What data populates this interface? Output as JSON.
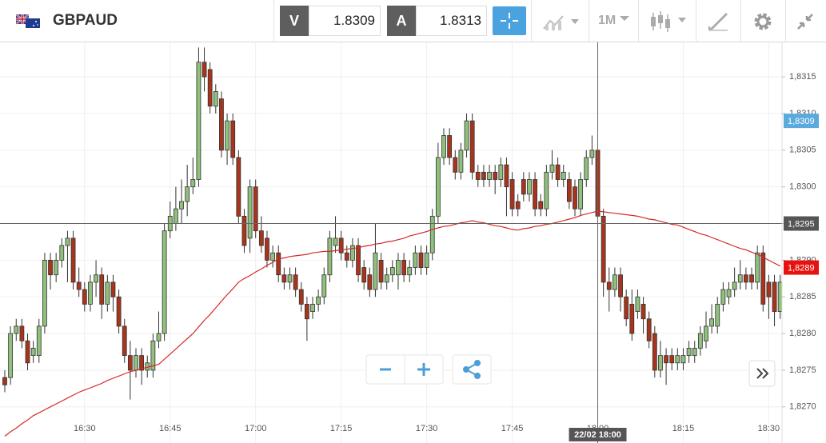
{
  "header": {
    "symbol": "GBPAUD",
    "bid_label": "V",
    "bid": 1.8309,
    "ask_label": "A",
    "ask": 1.8313,
    "timeframe": "1M"
  },
  "chart_data": {
    "type": "candlestick",
    "categories": [
      null,
      null,
      null,
      null,
      null,
      null,
      null,
      null,
      null,
      null,
      null,
      null,
      null,
      null,
      "16:30",
      null,
      null,
      null,
      null,
      null,
      null,
      null,
      null,
      null,
      null,
      null,
      null,
      null,
      null,
      "16:45",
      null,
      null,
      null,
      null,
      null,
      null,
      null,
      null,
      null,
      null,
      null,
      null,
      null,
      null,
      "17:00",
      null,
      null,
      null,
      null,
      null,
      null,
      null,
      null,
      null,
      null,
      null,
      null,
      null,
      null,
      "17:15",
      null,
      null,
      null,
      null,
      null,
      null,
      null,
      null,
      null,
      null,
      null,
      null,
      null,
      null,
      "17:30",
      null,
      null,
      null,
      null,
      null,
      null,
      null,
      null,
      null,
      null,
      null,
      null,
      null,
      null,
      "17:45",
      null,
      null,
      null,
      null,
      null,
      null,
      null,
      null,
      null,
      null,
      null,
      null,
      null,
      null,
      "18:00",
      null,
      null,
      null,
      null,
      null,
      null,
      null,
      null,
      null,
      null,
      null,
      null,
      null,
      null,
      "18:15",
      null,
      null,
      null,
      null,
      null,
      null,
      null,
      null,
      null,
      null,
      null,
      null,
      null,
      null,
      "18:30",
      null,
      null
    ],
    "candles": [
      [
        1.8274,
        1.8275,
        1.8272,
        1.8273
      ],
      [
        1.8274,
        1.8281,
        1.8273,
        1.828
      ],
      [
        1.828,
        1.8282,
        1.8279,
        1.8281
      ],
      [
        1.8281,
        1.8282,
        1.8278,
        1.8279
      ],
      [
        1.8279,
        1.828,
        1.8275,
        1.8276
      ],
      [
        1.8277,
        1.8279,
        1.8276,
        1.8278
      ],
      [
        1.8277,
        1.8282,
        1.8276,
        1.8281
      ],
      [
        1.8281,
        1.8291,
        1.828,
        1.829
      ],
      [
        1.829,
        1.8291,
        1.8286,
        1.8288
      ],
      [
        1.8288,
        1.8291,
        1.8287,
        1.829
      ],
      [
        1.829,
        1.8293,
        1.8289,
        1.8292
      ],
      [
        1.8292,
        1.8294,
        1.8287,
        1.8293
      ],
      [
        1.8293,
        1.8294,
        1.8286,
        1.8287
      ],
      [
        1.8287,
        1.8289,
        1.8285,
        1.8286
      ],
      [
        1.8286,
        1.8287,
        1.8283,
        1.8284
      ],
      [
        1.8284,
        1.8288,
        1.8283,
        1.8287
      ],
      [
        1.8287,
        1.829,
        1.8285,
        1.8288
      ],
      [
        1.8288,
        1.8289,
        1.8282,
        1.8284
      ],
      [
        1.8284,
        1.8288,
        1.8283,
        1.8287
      ],
      [
        1.8287,
        1.8288,
        1.8283,
        1.8285
      ],
      [
        1.8285,
        1.8286,
        1.828,
        1.8281
      ],
      [
        1.8281,
        1.8282,
        1.8276,
        1.8277
      ],
      [
        1.8277,
        1.8279,
        1.8271,
        1.8275
      ],
      [
        1.8275,
        1.8278,
        1.8274,
        1.8277
      ],
      [
        1.8277,
        1.8278,
        1.8273,
        1.8275
      ],
      [
        1.8275,
        1.8277,
        1.8274,
        1.8276
      ],
      [
        1.8275,
        1.828,
        1.8274,
        1.8279
      ],
      [
        1.8279,
        1.8283,
        1.8278,
        1.828
      ],
      [
        1.828,
        1.8295,
        1.8279,
        1.8294
      ],
      [
        1.8294,
        1.8298,
        1.8293,
        1.8296
      ],
      [
        1.8295,
        1.83,
        1.8294,
        1.8297
      ],
      [
        1.8297,
        1.8301,
        1.8295,
        1.8298
      ],
      [
        1.8298,
        1.8303,
        1.8296,
        1.83
      ],
      [
        1.83,
        1.8304,
        1.8299,
        1.8301
      ],
      [
        1.8301,
        1.8319,
        1.83,
        1.8317
      ],
      [
        1.8317,
        1.8319,
        1.8313,
        1.8315
      ],
      [
        1.8316,
        1.8317,
        1.831,
        1.8311
      ],
      [
        1.8311,
        1.8314,
        1.831,
        1.8313
      ],
      [
        1.8312,
        1.8313,
        1.8304,
        1.8305
      ],
      [
        1.8305,
        1.831,
        1.8303,
        1.8309
      ],
      [
        1.8309,
        1.831,
        1.8303,
        1.8304
      ],
      [
        1.8304,
        1.8305,
        1.8295,
        1.8296
      ],
      [
        1.8296,
        1.8297,
        1.8291,
        1.8292
      ],
      [
        1.8293,
        1.8301,
        1.8291,
        1.83
      ],
      [
        1.83,
        1.8301,
        1.8293,
        1.8294
      ],
      [
        1.8294,
        1.8296,
        1.8291,
        1.8292
      ],
      [
        1.8293,
        1.8294,
        1.8289,
        1.829
      ],
      [
        1.829,
        1.8292,
        1.8289,
        1.8291
      ],
      [
        1.8291,
        1.8292,
        1.8287,
        1.8288
      ],
      [
        1.8288,
        1.8289,
        1.8286,
        1.8287
      ],
      [
        1.8287,
        1.8289,
        1.8286,
        1.8288
      ],
      [
        1.8288,
        1.8289,
        1.8285,
        1.8286
      ],
      [
        1.8286,
        1.8287,
        1.8283,
        1.8284
      ],
      [
        1.8284,
        1.8285,
        1.8279,
        1.8282
      ],
      [
        1.8283,
        1.8285,
        1.8282,
        1.8284
      ],
      [
        1.8284,
        1.8286,
        1.8283,
        1.8285
      ],
      [
        1.8285,
        1.8289,
        1.8284,
        1.8288
      ],
      [
        1.8288,
        1.8294,
        1.8287,
        1.8293
      ],
      [
        1.8292,
        1.8296,
        1.8291,
        1.8293
      ],
      [
        1.8293,
        1.8294,
        1.829,
        1.8291
      ],
      [
        1.8291,
        1.8292,
        1.8289,
        1.829
      ],
      [
        1.829,
        1.8293,
        1.8289,
        1.8292
      ],
      [
        1.8292,
        1.8293,
        1.8287,
        1.8288
      ],
      [
        1.8289,
        1.829,
        1.8286,
        1.8287
      ],
      [
        1.8288,
        1.8289,
        1.8285,
        1.8286
      ],
      [
        1.8286,
        1.8295,
        1.8285,
        1.8291
      ],
      [
        1.829,
        1.8291,
        1.8286,
        1.8287
      ],
      [
        1.8287,
        1.8289,
        1.8286,
        1.8288
      ],
      [
        1.8288,
        1.829,
        1.8287,
        1.8289
      ],
      [
        1.8288,
        1.8291,
        1.8286,
        1.829
      ],
      [
        1.829,
        1.8291,
        1.8287,
        1.8288
      ],
      [
        1.8288,
        1.829,
        1.8287,
        1.8289
      ],
      [
        1.8289,
        1.8292,
        1.8288,
        1.8291
      ],
      [
        1.8291,
        1.8292,
        1.8288,
        1.8289
      ],
      [
        1.8289,
        1.8292,
        1.8288,
        1.8291
      ],
      [
        1.8291,
        1.8297,
        1.829,
        1.8296
      ],
      [
        1.8296,
        1.8306,
        1.8295,
        1.8304
      ],
      [
        1.8304,
        1.8308,
        1.8303,
        1.8307
      ],
      [
        1.8307,
        1.8308,
        1.8303,
        1.8304
      ],
      [
        1.8304,
        1.8305,
        1.8301,
        1.8302
      ],
      [
        1.8302,
        1.8306,
        1.8301,
        1.8305
      ],
      [
        1.8305,
        1.831,
        1.8304,
        1.8309
      ],
      [
        1.8309,
        1.831,
        1.8301,
        1.8302
      ],
      [
        1.8302,
        1.8303,
        1.83,
        1.8301
      ],
      [
        1.8302,
        1.8303,
        1.83,
        1.8301
      ],
      [
        1.8301,
        1.8303,
        1.83,
        1.8302
      ],
      [
        1.8302,
        1.8303,
        1.8299,
        1.8301
      ],
      [
        1.8301,
        1.8304,
        1.83,
        1.8303
      ],
      [
        1.8303,
        1.8304,
        1.8296,
        1.83
      ],
      [
        1.8301,
        1.8302,
        1.8296,
        1.8297
      ],
      [
        1.8298,
        1.8299,
        1.8296,
        1.8297
      ],
      [
        1.8301,
        1.8302,
        1.8298,
        1.8299
      ],
      [
        1.8299,
        1.8302,
        1.8298,
        1.8301
      ],
      [
        1.8301,
        1.8302,
        1.8296,
        1.8297
      ],
      [
        1.8298,
        1.8299,
        1.8296,
        1.8297
      ],
      [
        1.8297,
        1.8303,
        1.8296,
        1.8302
      ],
      [
        1.8302,
        1.8305,
        1.8301,
        1.8303
      ],
      [
        1.8303,
        1.8304,
        1.83,
        1.8301
      ],
      [
        1.8301,
        1.8303,
        1.83,
        1.8302
      ],
      [
        1.8301,
        1.8302,
        1.8297,
        1.8298
      ],
      [
        1.83,
        1.8301,
        1.8296,
        1.8297
      ],
      [
        1.8297,
        1.8302,
        1.8296,
        1.8301
      ],
      [
        1.8301,
        1.8305,
        1.83,
        1.8304
      ],
      [
        1.8304,
        1.8307,
        1.8303,
        1.8305
      ],
      [
        1.8305,
        1.8306,
        1.8294,
        1.8296
      ],
      [
        1.8296,
        1.8297,
        1.8285,
        1.8287
      ],
      [
        1.8287,
        1.8289,
        1.8283,
        1.8286
      ],
      [
        1.8286,
        1.8289,
        1.8285,
        1.8288
      ],
      [
        1.8288,
        1.8289,
        1.8283,
        1.8285
      ],
      [
        1.8285,
        1.8286,
        1.8281,
        1.8282
      ],
      [
        1.8284,
        1.8286,
        1.8279,
        1.828
      ],
      [
        1.8283,
        1.8286,
        1.8282,
        1.8285
      ],
      [
        1.8284,
        1.8285,
        1.828,
        1.8282
      ],
      [
        1.8282,
        1.8283,
        1.8278,
        1.8279
      ],
      [
        1.828,
        1.8281,
        1.8274,
        1.8275
      ],
      [
        1.8275,
        1.8279,
        1.8274,
        1.8277
      ],
      [
        1.8277,
        1.8278,
        1.8273,
        1.8276
      ],
      [
        1.8277,
        1.8278,
        1.8275,
        1.8276
      ],
      [
        1.8276,
        1.8278,
        1.8275,
        1.8277
      ],
      [
        1.8276,
        1.8278,
        1.8275,
        1.8277
      ],
      [
        1.8277,
        1.8279,
        1.8276,
        1.8278
      ],
      [
        1.8277,
        1.8279,
        1.8276,
        1.8278
      ],
      [
        1.8278,
        1.8281,
        1.8277,
        1.828
      ],
      [
        1.8279,
        1.8283,
        1.8278,
        1.8281
      ],
      [
        1.8281,
        1.8284,
        1.828,
        1.8282
      ],
      [
        1.8281,
        1.8285,
        1.828,
        1.8284
      ],
      [
        1.8284,
        1.8287,
        1.8283,
        1.8286
      ],
      [
        1.8285,
        1.8287,
        1.8284,
        1.8286
      ],
      [
        1.8286,
        1.8289,
        1.8285,
        1.8287
      ],
      [
        1.8287,
        1.829,
        1.8286,
        1.8288
      ],
      [
        1.8288,
        1.8289,
        1.8286,
        1.8287
      ],
      [
        1.8288,
        1.8289,
        1.8286,
        1.8287
      ],
      [
        1.8287,
        1.8292,
        1.8286,
        1.8291
      ],
      [
        1.8291,
        1.8292,
        1.8283,
        1.8284
      ],
      [
        1.8287,
        1.8288,
        1.8282,
        1.8285
      ],
      [
        1.8287,
        1.8288,
        1.8281,
        1.8283
      ],
      [
        1.8283,
        1.8288,
        1.8282,
        1.8287
      ]
    ],
    "up_color": "#8fc07c",
    "down_color": "#a8341c",
    "ma": {
      "color": "#d42a2a",
      "values": [
        1.8266,
        1.82666,
        1.82671,
        1.82677,
        1.82682,
        1.82688,
        1.82692,
        1.82696,
        1.827,
        1.82704,
        1.82708,
        1.82712,
        1.82716,
        1.8272,
        1.82723,
        1.82726,
        1.82729,
        1.82732,
        1.82736,
        1.82739,
        1.82742,
        1.82745,
        1.82748,
        1.8275,
        1.82752,
        1.82754,
        1.82756,
        1.82758,
        1.82765,
        1.82772,
        1.82779,
        1.82786,
        1.82793,
        1.828,
        1.82809,
        1.82818,
        1.82826,
        1.82835,
        1.82844,
        1.82853,
        1.82861,
        1.8287,
        1.82875,
        1.82879,
        1.82884,
        1.82888,
        1.82893,
        1.82897,
        1.82902,
        1.82903,
        1.82905,
        1.82906,
        1.82907,
        1.82908,
        1.8291,
        1.82911,
        1.82912,
        1.82912,
        1.82913,
        1.82914,
        1.82915,
        1.82916,
        1.82917,
        1.82919,
        1.8292,
        1.82922,
        1.82923,
        1.82925,
        1.82926,
        1.82928,
        1.8293,
        1.82933,
        1.82935,
        1.82937,
        1.82939,
        1.82942,
        1.82944,
        1.82946,
        1.82947,
        1.82949,
        1.82951,
        1.82952,
        1.82954,
        1.82952,
        1.82951,
        1.82949,
        1.82947,
        1.82946,
        1.82944,
        1.82942,
        1.82941,
        1.82943,
        1.82944,
        1.82946,
        1.82947,
        1.82949,
        1.8295,
        1.82952,
        1.82954,
        1.82956,
        1.82958,
        1.82961,
        1.82963,
        1.82965,
        1.82967,
        1.82966,
        1.82965,
        1.82964,
        1.82963,
        1.82962,
        1.82961,
        1.8296,
        1.82958,
        1.82956,
        1.82955,
        1.82953,
        1.82951,
        1.82949,
        1.82948,
        1.82945,
        1.82942,
        1.82939,
        1.82936,
        1.82934,
        1.82931,
        1.82928,
        1.82925,
        1.82922,
        1.82919,
        1.82916,
        1.82914,
        1.82911,
        1.82908,
        1.82904,
        1.829,
        1.82896,
        1.82892
      ]
    },
    "ylim": [
      1.82666,
      1.83197
    ],
    "yticks": [
      {
        "value": 1.827,
        "label": "1,8270"
      },
      {
        "value": 1.8275,
        "label": "1,8275"
      },
      {
        "value": 1.828,
        "label": "1,8280"
      },
      {
        "value": 1.8285,
        "label": "1,8285"
      },
      {
        "value": 1.829,
        "label": "1,8290"
      },
      {
        "value": 1.8295,
        "label": "1,8295"
      },
      {
        "value": 1.83,
        "label": "1,8300"
      },
      {
        "value": 1.8305,
        "label": "1,8305"
      },
      {
        "value": 1.831,
        "label": "1,8310"
      },
      {
        "value": 1.8315,
        "label": "1,8315"
      }
    ],
    "grid": true,
    "price_badges": [
      {
        "value": 1.8309,
        "label": "1,8309",
        "color": "#5aaade"
      },
      {
        "value": 1.8289,
        "label": "1,8289",
        "color": "#e8110f"
      }
    ],
    "crosshair": {
      "y": {
        "value": 1.8295,
        "label": "1,8295"
      },
      "x_category": "18:00",
      "x_label": "22/02 18:00",
      "color": "#666666"
    }
  }
}
